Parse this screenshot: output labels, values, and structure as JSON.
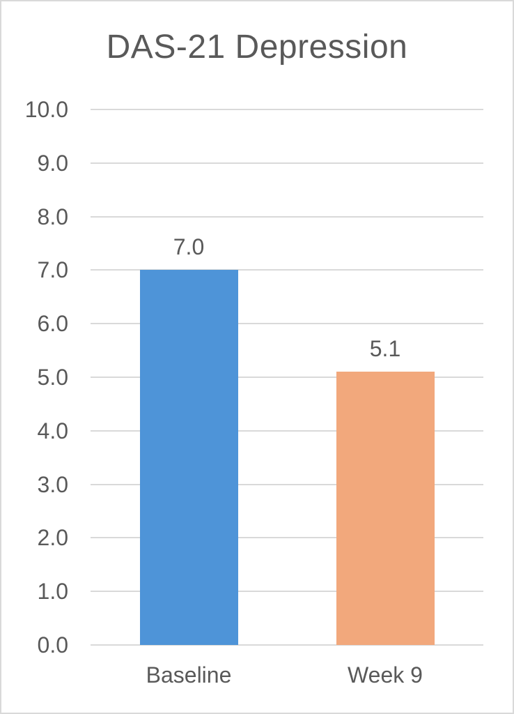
{
  "chart_data": {
    "type": "bar",
    "title": "DAS-21 Depression",
    "categories": [
      "Baseline",
      "Week 9"
    ],
    "values": [
      7.0,
      5.1
    ],
    "data_labels": [
      "7.0",
      "5.1"
    ],
    "bar_colors": [
      "#4E94D8",
      "#F2A87C"
    ],
    "xlabel": "",
    "ylabel": "",
    "ylim": [
      0,
      10
    ],
    "ytick_step": 1.0,
    "ytick_labels": [
      "0.0",
      "1.0",
      "2.0",
      "3.0",
      "4.0",
      "5.0",
      "6.0",
      "7.0",
      "8.0",
      "9.0",
      "10.0"
    ],
    "grid": true,
    "legend": "none"
  },
  "colors": {
    "text": "#595959",
    "gridline": "#D9D9D9",
    "frame_border": "#D9D9D9",
    "background": "#FFFFFF"
  }
}
